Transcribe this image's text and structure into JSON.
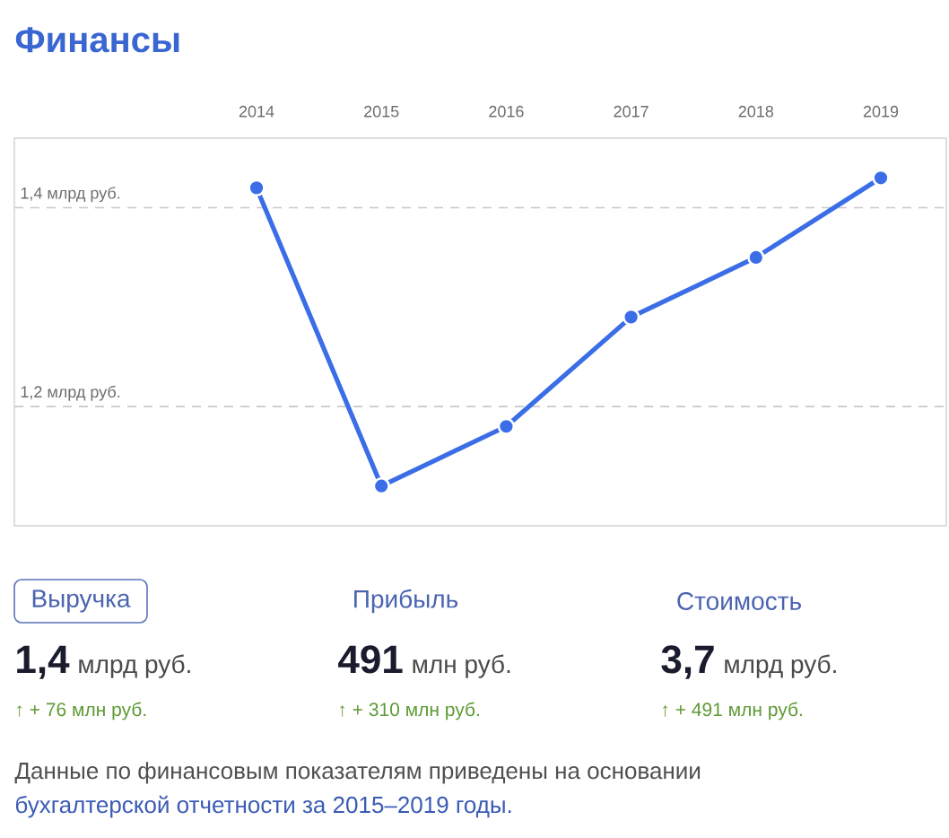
{
  "chart_data": {
    "type": "line",
    "title": "Финансы",
    "categories": [
      "2014",
      "2015",
      "2016",
      "2017",
      "2018",
      "2019"
    ],
    "values": [
      1.42,
      1.12,
      1.18,
      1.29,
      1.35,
      1.43
    ],
    "color": "#3b6ee6",
    "ylim": [
      1.08,
      1.47
    ],
    "yticks": [
      {
        "value": 1.2,
        "label": "1,2 млрд руб."
      },
      {
        "value": 1.4,
        "label": "1,4 млрд руб."
      }
    ],
    "grid": "y",
    "marker": "circle",
    "line_style": "solid",
    "annotations": [
      "Выручка",
      "Прибыль",
      "Стоимость",
      "1,4",
      "млрд руб.",
      "491",
      "млн руб.",
      "3,7",
      "млрд руб.",
      "↑ + 76 млн руб.",
      "↑ + 310 млн руб.",
      "↑ + 491 млн руб.",
      "Данные по финансовым показателям приведены на основании",
      "бухгалтерской отчетности за 2015–2019 годы."
    ]
  }
}
